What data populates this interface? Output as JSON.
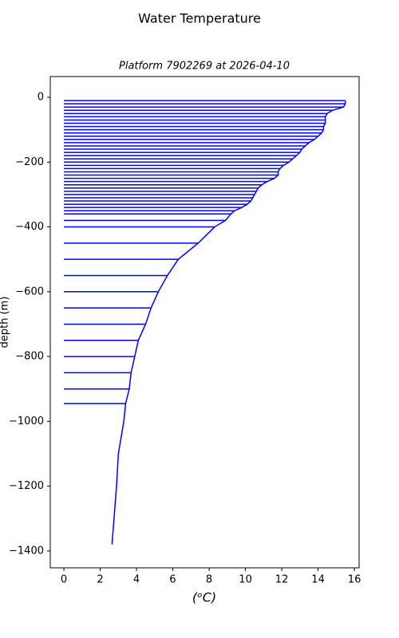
{
  "chart_data": {
    "type": "line",
    "title": "Water Temperature",
    "subtitle": "Platform 7902269 at 2026-04-10",
    "y_label": "depth (m)",
    "x_label": "(ᵒC)",
    "color": "#0000ff",
    "xlim": [
      -0.75,
      16.26
    ],
    "ylim": [
      -1452,
      64
    ],
    "xticks": [
      0,
      2,
      4,
      6,
      8,
      10,
      12,
      14,
      16
    ],
    "yticks": [
      0,
      {
        "value": -200,
        "label": "−200"
      },
      {
        "value": -400,
        "label": "−400"
      },
      {
        "value": -600,
        "label": "−600"
      },
      {
        "value": -800,
        "label": "−800"
      },
      {
        "value": -1000,
        "label": "−1000"
      },
      {
        "value": -1200,
        "label": "−1200"
      },
      {
        "value": -1400,
        "label": "−1400"
      }
    ],
    "series": [
      {
        "style": "line",
        "depths": [
          -10,
          -20,
          -30,
          -40,
          -50,
          -60,
          -70,
          -80,
          -90,
          -100,
          -110,
          -120,
          -130,
          -140,
          -150,
          -160,
          -170,
          -180,
          -190,
          -200,
          -210,
          -220,
          -230,
          -240,
          -250,
          -260,
          -270,
          -280,
          -290,
          -300,
          -310,
          -320,
          -330,
          -340,
          -350,
          -360,
          -380,
          -400,
          -450,
          -500,
          -550,
          -600,
          -650,
          -700,
          -750,
          -800,
          -850,
          -900,
          -945,
          -1000,
          -1100,
          -1200,
          -1380
        ],
        "values": [
          15.5,
          15.5,
          15.4,
          14.8,
          14.5,
          14.4,
          14.4,
          14.4,
          14.3,
          14.3,
          14.2,
          14.0,
          13.8,
          13.5,
          13.3,
          13.1,
          13.0,
          12.8,
          12.6,
          12.4,
          12.1,
          11.9,
          11.8,
          11.8,
          11.6,
          11.2,
          10.9,
          10.7,
          10.6,
          10.5,
          10.4,
          10.3,
          10.1,
          9.8,
          9.4,
          9.2,
          8.9,
          8.3,
          7.4,
          6.3,
          5.7,
          5.2,
          4.8,
          4.5,
          4.1,
          3.9,
          3.7,
          3.6,
          3.4,
          3.3,
          3.0,
          2.9,
          2.65
        ]
      },
      {
        "style": "hlines",
        "depths": [
          -10,
          -20,
          -30,
          -40,
          -50,
          -60,
          -70,
          -80,
          -90,
          -100,
          -110,
          -120,
          -130,
          -140,
          -150,
          -160,
          -170,
          -180,
          -190,
          -200,
          -210,
          -220,
          -230,
          -240,
          -250,
          -260,
          -270,
          -280,
          -290,
          -300,
          -310,
          -320,
          -330,
          -340,
          -350,
          -360,
          -380,
          -400,
          -450,
          -500,
          -550,
          -600,
          -650,
          -700,
          -750,
          -800,
          -850,
          -900,
          -945
        ],
        "values": [
          15.5,
          15.5,
          15.4,
          14.8,
          14.5,
          14.4,
          14.4,
          14.4,
          14.3,
          14.3,
          14.2,
          14.0,
          13.8,
          13.5,
          13.3,
          13.1,
          13.0,
          12.8,
          12.6,
          12.4,
          12.1,
          11.9,
          11.8,
          11.8,
          11.6,
          11.2,
          10.9,
          10.7,
          10.6,
          10.5,
          10.4,
          10.3,
          10.1,
          9.8,
          9.4,
          9.2,
          8.9,
          8.3,
          7.4,
          6.3,
          5.7,
          5.2,
          4.8,
          4.5,
          4.1,
          3.9,
          3.7,
          3.6,
          3.4
        ]
      }
    ]
  }
}
